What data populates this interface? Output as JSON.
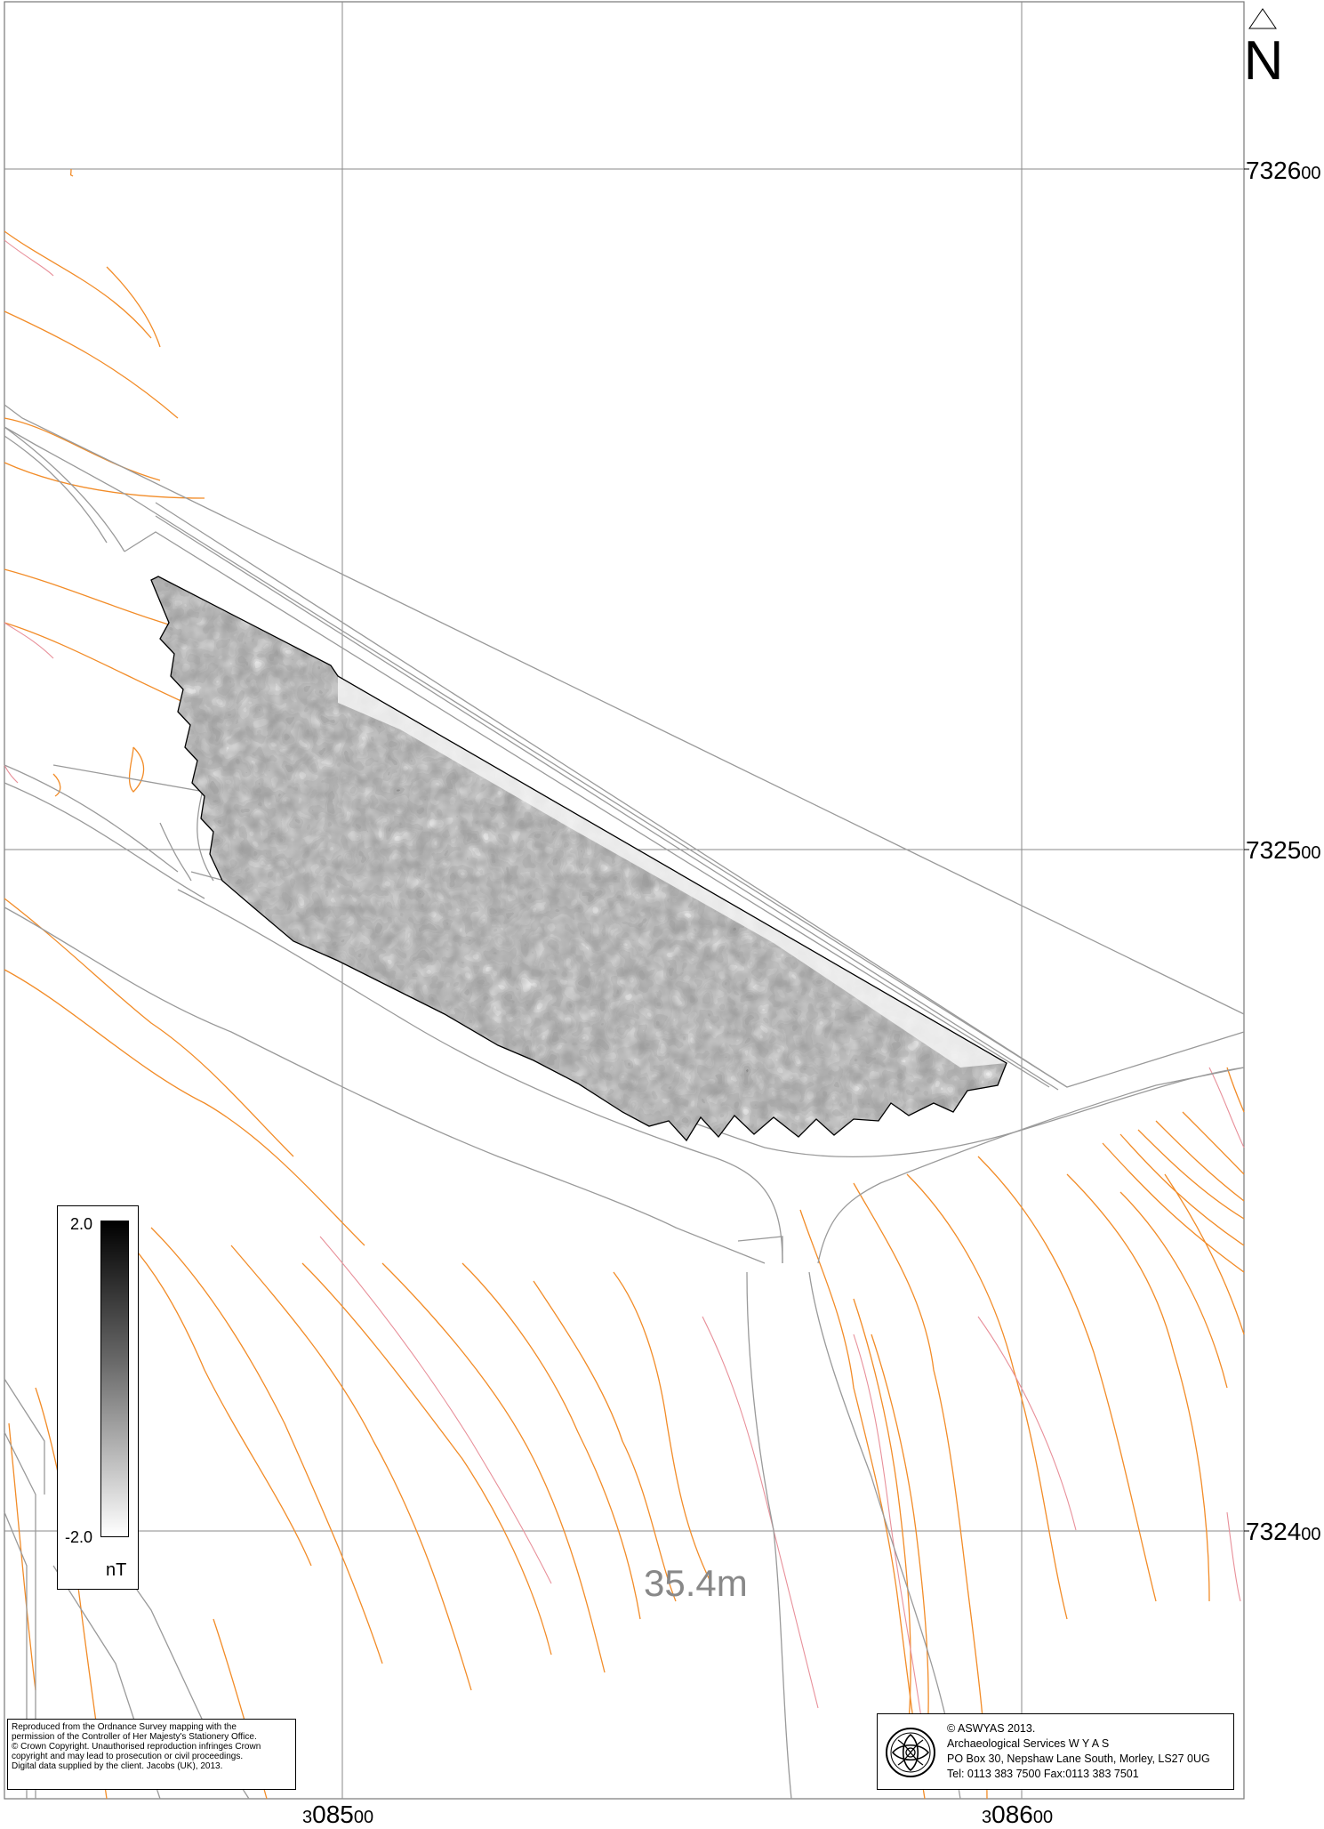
{
  "north_arrow": {
    "label": "N"
  },
  "grid": {
    "northings": [
      {
        "big": "7326",
        "small": "00"
      },
      {
        "big": "7325",
        "small": "00"
      },
      {
        "big": "7324",
        "small": "00"
      }
    ],
    "eastings": [
      {
        "small_prefix": "3",
        "big": "085",
        "small": "00"
      },
      {
        "small_prefix": "3",
        "big": "086",
        "small": "00"
      }
    ]
  },
  "contour_label": "35.4m",
  "legend": {
    "max": "2.0",
    "min": "-2.0",
    "unit": "nT"
  },
  "copyright_notice": [
    "Reproduced from the Ordnance Survey mapping with the",
    "permission of the Controller of Her Majesty's Stationery Office.",
    "© Crown Copyright. Unauthorised reproduction infringes Crown",
    "copyright and may lead to prosecution or civil proceedings.",
    "Digital data supplied by the client. Jacobs (UK), 2013."
  ],
  "credit": {
    "line1": "© ASWYAS 2013.",
    "line2": "Archaeological Services W Y A S",
    "line3": "PO Box 30, Nepshaw Lane South, Morley, LS27 0UG",
    "line4": "Tel: 0113 383 7500   Fax:0113 383 7501"
  },
  "colors": {
    "contour": "#f28c28",
    "boundary_pink": "#e8909a",
    "road": "#9a9a9a",
    "grid": "#8a8a8a"
  }
}
